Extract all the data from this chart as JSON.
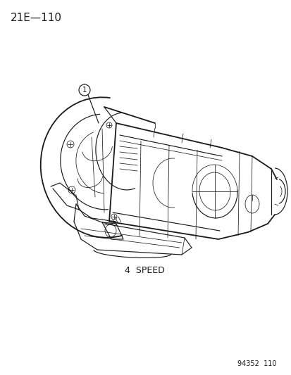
{
  "page_label": "21E—110",
  "caption": "4  SPEED",
  "part_number": "94352  110",
  "callout_number": "1",
  "bg_color": "#ffffff",
  "line_color": "#1a1a1a",
  "text_color": "#1a1a1a",
  "page_label_fontsize": 11,
  "caption_fontsize": 9,
  "part_number_fontsize": 7,
  "callout_fontsize": 7.5,
  "lw_thin": 0.55,
  "lw_med": 0.85,
  "lw_thick": 1.3
}
